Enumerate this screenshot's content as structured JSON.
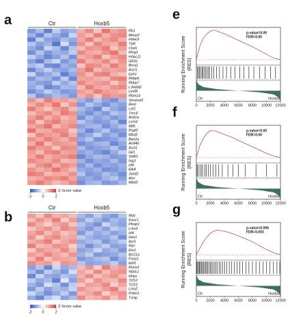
{
  "colorbar": {
    "title": "Z-Score value",
    "zlim": [
      -2,
      2
    ],
    "ticks": [
      -2,
      0,
      2
    ],
    "colors": [
      "#2c55c4",
      "#ffffff",
      "#df3a30"
    ]
  },
  "heatmaps": [
    {
      "letter": "a",
      "groups": [
        "Ctr",
        "Hoxb5"
      ],
      "group_sizes": [
        6,
        6
      ],
      "genes": [
        "Rb1",
        "Mecp2",
        "Hdac9",
        "Taf6",
        "Cbx6",
        "Ring1",
        "Hdac11",
        "Gfi1b",
        "Brca1",
        "Ascl1",
        "Ezh1",
        "Rbbp6",
        "Rbbp7",
        "L3mbtl2",
        "Lin28",
        "Rbm14",
        "Smarca5",
        "Rest",
        "Lef1",
        "Tnrc6",
        "Arid1a",
        "Lin54",
        "Mll5",
        "Pcgf2",
        "Mbd2",
        "Baz2a",
        "Arid4b",
        "Asxl1",
        "Gli1",
        "Satb1",
        "Ing3",
        "Irf4",
        "Elk4",
        "Jarid2",
        "Atrx",
        "Mbd3"
      ],
      "z": [
        [
          -1.2,
          -0.8,
          -1.5,
          -0.6,
          -1.1,
          -0.9,
          0.8,
          1.2,
          0.6,
          1.4,
          0.9,
          1.1
        ],
        [
          -0.9,
          -1.4,
          -0.7,
          -1.0,
          -1.3,
          -0.5,
          1.0,
          0.7,
          1.3,
          0.8,
          1.1,
          1.2
        ],
        [
          -1.5,
          -0.6,
          -1.1,
          -1.2,
          -0.8,
          -1.0,
          0.9,
          1.3,
          0.7,
          1.0,
          1.2,
          0.8
        ],
        [
          -0.7,
          -1.1,
          -0.9,
          -1.6,
          -0.4,
          -1.2,
          1.1,
          0.6,
          1.2,
          0.9,
          0.8,
          1.3
        ],
        [
          -1.0,
          -1.3,
          -0.5,
          -0.8,
          -1.4,
          -0.7,
          0.7,
          1.1,
          1.0,
          1.3,
          0.6,
          1.0
        ],
        [
          -1.3,
          -0.7,
          -1.2,
          -0.9,
          -1.0,
          -0.6,
          1.2,
          0.9,
          0.8,
          1.1,
          1.4,
          0.7
        ],
        [
          -0.6,
          -1.0,
          -1.4,
          -1.1,
          -0.7,
          -1.3,
          0.8,
          1.0,
          1.3,
          0.6,
          1.0,
          1.2
        ],
        [
          -1.1,
          -1.5,
          -0.8,
          -0.5,
          -1.2,
          -0.9,
          1.3,
          0.8,
          0.9,
          1.2,
          0.7,
          1.1
        ],
        [
          -0.8,
          -0.6,
          -1.3,
          -1.4,
          -0.9,
          -1.1,
          0.6,
          1.2,
          1.1,
          0.8,
          1.3,
          0.9
        ],
        [
          -1.4,
          -0.9,
          -0.6,
          -1.0,
          -1.1,
          -0.8,
          1.0,
          1.4,
          0.7,
          1.0,
          0.9,
          1.0
        ],
        [
          -0.5,
          -1.2,
          -1.0,
          -0.7,
          -1.5,
          -1.0,
          1.1,
          0.7,
          1.2,
          1.3,
          0.8,
          0.6
        ],
        [
          -1.2,
          -0.8,
          -0.9,
          -1.3,
          -0.6,
          -1.4,
          0.9,
          1.0,
          0.8,
          0.7,
          1.2,
          1.3
        ],
        [
          -0.9,
          -1.1,
          -1.2,
          -0.6,
          -1.0,
          -0.7,
          1.2,
          0.9,
          1.0,
          1.1,
          0.6,
          1.0
        ],
        [
          -1.0,
          -0.7,
          -1.4,
          -1.2,
          -0.8,
          -0.9,
          0.7,
          1.3,
          0.9,
          0.8,
          1.1,
          1.2
        ],
        [
          -1.3,
          -1.0,
          -0.6,
          -0.9,
          -1.2,
          -1.1,
          1.0,
          0.8,
          1.3,
          1.0,
          0.9,
          0.7
        ],
        [
          -0.7,
          -1.3,
          -1.1,
          -0.8,
          -0.9,
          -1.2,
          0.8,
          1.1,
          0.6,
          1.2,
          1.0,
          1.1
        ],
        [
          1.1,
          0.7,
          1.3,
          0.9,
          1.0,
          0.8,
          -0.9,
          -1.2,
          -0.7,
          -1.1,
          -1.3,
          -0.8
        ],
        [
          0.8,
          1.2,
          0.9,
          1.4,
          0.6,
          1.1,
          -1.2,
          -0.7,
          -1.0,
          -1.3,
          -0.9,
          -1.1
        ],
        [
          1.3,
          0.9,
          0.6,
          1.0,
          1.2,
          0.7,
          -0.8,
          -1.1,
          -1.4,
          -0.6,
          -1.0,
          -1.2
        ],
        [
          0.7,
          1.0,
          1.2,
          0.8,
          1.3,
          1.1,
          -1.0,
          -1.3,
          -0.9,
          -1.2,
          -0.7,
          -0.9
        ],
        [
          1.0,
          1.3,
          0.8,
          1.1,
          0.7,
          0.9,
          -1.3,
          -0.8,
          -1.1,
          -0.9,
          -1.2,
          -1.0
        ],
        [
          1.2,
          0.6,
          1.1,
          1.3,
          0.9,
          1.0,
          -0.7,
          -1.0,
          -1.2,
          -1.1,
          -0.8,
          -1.4
        ],
        [
          0.9,
          1.1,
          1.4,
          0.7,
          1.0,
          1.2,
          -1.1,
          -0.9,
          -0.8,
          -1.3,
          -1.0,
          -0.7
        ],
        [
          1.4,
          0.8,
          0.9,
          1.2,
          1.1,
          0.6,
          -0.9,
          -1.4,
          -1.0,
          -0.7,
          -1.2,
          -1.1
        ],
        [
          0.6,
          1.2,
          1.0,
          0.9,
          1.3,
          0.8,
          -1.2,
          -1.0,
          -0.6,
          -1.1,
          -0.9,
          -1.3
        ],
        [
          1.1,
          0.9,
          1.3,
          1.0,
          0.8,
          1.2,
          -1.0,
          -0.7,
          -1.3,
          -1.2,
          -1.1,
          -0.8
        ],
        [
          0.8,
          1.4,
          0.7,
          1.1,
          1.0,
          0.9,
          -1.3,
          -1.1,
          -0.9,
          -0.8,
          -1.4,
          -1.0
        ],
        [
          1.3,
          1.0,
          1.1,
          0.6,
          1.2,
          1.1,
          -0.8,
          -1.2,
          -1.1,
          -1.0,
          -0.7,
          -1.2
        ],
        [
          1.0,
          0.7,
          1.2,
          1.3,
          0.9,
          1.0,
          -1.1,
          -0.9,
          -1.2,
          -1.4,
          -1.0,
          -0.6
        ],
        [
          0.9,
          1.3,
          0.8,
          1.0,
          1.1,
          1.3,
          -1.4,
          -1.0,
          -0.8,
          -0.9,
          -1.2,
          -1.1
        ],
        [
          1.2,
          1.0,
          0.9,
          1.2,
          0.7,
          0.8,
          -0.9,
          -1.3,
          -1.0,
          -1.1,
          -0.8,
          -1.2
        ],
        [
          0.7,
          1.1,
          1.3,
          0.8,
          1.2,
          1.0,
          -1.2,
          -0.8,
          -1.3,
          -1.0,
          -1.1,
          -0.9
        ],
        [
          1.1,
          0.8,
          1.0,
          1.4,
          1.0,
          0.7,
          -1.0,
          -1.1,
          -0.9,
          -1.3,
          -1.2,
          -1.0
        ],
        [
          1.3,
          1.2,
          0.7,
          0.9,
          0.8,
          1.1,
          -0.7,
          -1.2,
          -1.1,
          -0.8,
          -1.0,
          -1.3
        ],
        [
          0.8,
          0.9,
          1.2,
          1.1,
          1.3,
          0.9,
          -1.1,
          -1.0,
          -1.2,
          -0.9,
          -0.7,
          -1.1
        ],
        [
          1.0,
          1.3,
          1.0,
          0.7,
          0.9,
          1.2,
          -1.3,
          -0.9,
          -0.8,
          -1.2,
          -1.1,
          -0.8
        ]
      ]
    },
    {
      "letter": "b",
      "groups": [
        "Ctr",
        "Hoxb5"
      ],
      "group_sizes": [
        6,
        6
      ],
      "genes": [
        "Myb",
        "Foxc1",
        "Pbxip1",
        "Lmo4",
        "Irf4",
        "Hes1",
        "Bcl3",
        "Myc",
        "Ets1",
        "Bcl11a",
        "Foxp1",
        "Ebf1",
        "Runx2",
        "Nfatc1",
        "Hhex",
        "Tcf12",
        "Tcf19",
        "Lmo2",
        "Prdm1",
        "Txnip"
      ],
      "z": [
        [
          1.0,
          0.6,
          1.2,
          0.8,
          0.9,
          0.7,
          -0.8,
          -1.1,
          -0.6,
          -1.0,
          -1.2,
          -0.7
        ],
        [
          0.7,
          1.1,
          0.8,
          1.3,
          0.5,
          1.0,
          -1.1,
          -0.6,
          -0.9,
          -1.2,
          -0.8,
          -1.0
        ],
        [
          1.2,
          0.8,
          0.5,
          0.9,
          1.1,
          0.6,
          -0.7,
          -1.0,
          -1.3,
          -0.5,
          -0.9,
          -1.1
        ],
        [
          0.6,
          0.9,
          1.1,
          0.7,
          1.2,
          1.0,
          -0.9,
          -1.2,
          -0.8,
          -1.1,
          -0.6,
          -0.8
        ],
        [
          0.9,
          1.2,
          0.7,
          1.0,
          0.6,
          0.8,
          -1.2,
          -0.7,
          -1.0,
          -0.8,
          -1.1,
          -0.9
        ],
        [
          1.1,
          0.5,
          1.0,
          1.2,
          0.8,
          0.9,
          -0.6,
          -0.9,
          -1.1,
          -1.0,
          -0.7,
          -1.3
        ],
        [
          0.8,
          1.0,
          1.3,
          0.6,
          0.9,
          1.1,
          -1.0,
          -0.8,
          -0.7,
          -1.2,
          -0.9,
          -0.6
        ],
        [
          1.3,
          0.7,
          0.8,
          1.1,
          1.0,
          0.5,
          -0.8,
          -1.3,
          -0.9,
          -0.6,
          -1.1,
          -1.0
        ],
        [
          0.5,
          1.1,
          0.9,
          0.8,
          1.2,
          0.7,
          -1.1,
          -0.9,
          -0.5,
          -1.0,
          -0.8,
          -1.2
        ],
        [
          1.0,
          0.8,
          1.2,
          0.9,
          0.7,
          1.1,
          -0.9,
          -0.6,
          -1.2,
          -1.1,
          -1.0,
          -0.7
        ],
        [
          0.7,
          1.3,
          0.6,
          1.0,
          0.9,
          0.8,
          -1.2,
          -1.0,
          -0.8,
          -0.7,
          -1.3,
          -0.9
        ],
        [
          1.2,
          0.9,
          1.0,
          0.5,
          1.1,
          1.0,
          -0.7,
          -1.1,
          -1.0,
          -0.9,
          -0.6,
          -1.1
        ],
        [
          -1.1,
          -0.7,
          -1.4,
          -0.5,
          -1.0,
          -0.8,
          0.7,
          1.1,
          0.5,
          1.3,
          0.8,
          1.0
        ],
        [
          -0.8,
          -1.3,
          -0.6,
          -0.9,
          -1.2,
          -0.4,
          0.9,
          0.6,
          1.2,
          0.7,
          1.0,
          1.1
        ],
        [
          -1.4,
          -0.5,
          -1.0,
          -1.1,
          -0.7,
          -0.9,
          0.8,
          1.2,
          0.6,
          0.9,
          1.1,
          0.7
        ],
        [
          -0.6,
          -1.0,
          -0.8,
          -1.5,
          -0.3,
          -1.1,
          1.0,
          0.5,
          1.1,
          0.8,
          0.7,
          1.2
        ],
        [
          -0.9,
          -1.2,
          -0.4,
          -0.7,
          -1.3,
          -0.6,
          0.6,
          1.0,
          0.9,
          1.2,
          0.5,
          0.9
        ],
        [
          -1.2,
          -0.6,
          -1.1,
          -0.8,
          -0.9,
          -0.5,
          1.1,
          0.8,
          0.7,
          1.0,
          1.3,
          0.6
        ],
        [
          -0.5,
          -0.9,
          -1.3,
          -1.0,
          -0.6,
          -1.2,
          0.7,
          0.9,
          1.2,
          0.5,
          0.9,
          1.1
        ],
        [
          -1.0,
          -1.4,
          -0.7,
          -0.4,
          -1.1,
          -0.8,
          1.2,
          0.7,
          0.8,
          1.1,
          0.6,
          1.0
        ]
      ]
    }
  ],
  "gsea_axes": {
    "xlim": [
      0,
      12000
    ],
    "xticks": [
      0,
      2000,
      4000,
      6000,
      8000,
      10000,
      12000
    ],
    "ylim": [
      -0.1,
      0.6
    ],
    "metric_lim": [
      -1,
      1
    ],
    "ylabel": "Running Enrichment Score",
    "ylabel2": "(RES)",
    "left": "Ctr",
    "right": "Hoxb5",
    "es_color": "#c0504d",
    "metric_color": "#3f6e60"
  },
  "gsea": [
    {
      "letter": "e",
      "stats": [
        "p-value=0.00",
        "FDR=0.00"
      ],
      "es": {
        "x": [
          0,
          500,
          1000,
          1500,
          2000,
          2500,
          3000,
          4000,
          5000,
          6000,
          7000,
          8000,
          9000,
          10000,
          11000,
          12000
        ],
        "y": [
          0,
          0.25,
          0.4,
          0.48,
          0.53,
          0.55,
          0.53,
          0.48,
          0.42,
          0.36,
          0.3,
          0.24,
          0.17,
          0.1,
          0.03,
          0
        ]
      },
      "hits": [
        150,
        300,
        420,
        600,
        800,
        950,
        1100,
        1300,
        1500,
        1700,
        1900,
        2200,
        2500,
        2900,
        3300,
        3800,
        4300,
        4900,
        5500,
        6200,
        6800,
        7500,
        8200,
        9000,
        9800,
        10600,
        11300
      ],
      "metric": {
        "x": [
          0,
          300,
          1000,
          3000,
          6000,
          9000,
          11000,
          11700,
          12000
        ],
        "y": [
          1,
          0.6,
          0.35,
          0.15,
          0,
          -0.15,
          -0.35,
          -0.6,
          -1
        ]
      }
    },
    {
      "letter": "f",
      "stats": [
        "p-value=0.00",
        "FDR=0.00"
      ],
      "es": {
        "x": [
          0,
          500,
          1000,
          1500,
          2000,
          2500,
          3000,
          4000,
          5000,
          6000,
          7000,
          8000,
          9000,
          10000,
          11000,
          12000
        ],
        "y": [
          0,
          0.22,
          0.36,
          0.45,
          0.5,
          0.5,
          0.48,
          0.43,
          0.38,
          0.32,
          0.26,
          0.2,
          0.14,
          0.08,
          0.03,
          0
        ]
      },
      "hits": [
        100,
        250,
        500,
        700,
        900,
        1200,
        1400,
        1700,
        2000,
        2400,
        2800,
        3200,
        3700,
        4500,
        5200,
        6000,
        7000,
        8500,
        10000,
        11500
      ],
      "metric": {
        "x": [
          0,
          300,
          1000,
          3000,
          6000,
          9000,
          11000,
          11700,
          12000
        ],
        "y": [
          1,
          0.6,
          0.35,
          0.15,
          0,
          -0.15,
          -0.35,
          -0.6,
          -1
        ]
      }
    },
    {
      "letter": "g",
      "stats": [
        "p-value=0.006",
        "FDR=0.003"
      ],
      "es": {
        "x": [
          0,
          500,
          1000,
          1500,
          2000,
          2500,
          3000,
          4000,
          5000,
          6000,
          7000,
          8000,
          9000,
          10000,
          11000,
          12000
        ],
        "y": [
          0,
          0.12,
          0.24,
          0.33,
          0.4,
          0.44,
          0.46,
          0.44,
          0.4,
          0.35,
          0.3,
          0.24,
          0.17,
          0.1,
          0.04,
          0
        ]
      },
      "hits": [
        60,
        180,
        300,
        420,
        560,
        700,
        840,
        990,
        1150,
        1300,
        1460,
        1620,
        1800,
        1980,
        2150,
        2350,
        2550,
        2780,
        3000,
        3250,
        3500,
        3780,
        4050,
        4350,
        4700,
        5050,
        5400,
        5800,
        6200,
        6600,
        7050,
        7500,
        8000,
        8500,
        9000,
        9500,
        10000,
        10500,
        11000,
        11500,
        11900
      ],
      "metric": {
        "x": [
          0,
          300,
          1000,
          3000,
          6000,
          9000,
          11000,
          11700,
          12000
        ],
        "y": [
          1,
          0.6,
          0.35,
          0.15,
          0,
          -0.15,
          -0.35,
          -0.6,
          -1
        ]
      }
    }
  ]
}
